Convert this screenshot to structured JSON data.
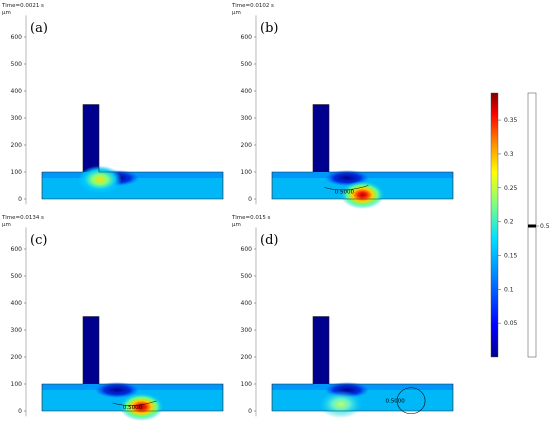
{
  "chart_data": {
    "type": "heatmap",
    "y_axis_unit": "µm",
    "panels": [
      {
        "label": "(a)",
        "time_text": "Time=0.0021 s",
        "y_ticks": [
          0,
          100,
          200,
          300,
          400,
          500,
          600
        ],
        "ylim": [
          -20,
          680
        ],
        "hotspots": [
          {
            "x": 0.32,
            "y": 0.28,
            "value": 0.28
          }
        ],
        "contour_label": "",
        "contour_x": 0.32,
        "contour_y": 0.28
      },
      {
        "label": "(b)",
        "time_text": "Time=0.0102 s",
        "y_ticks": [
          0,
          100,
          200,
          300,
          400,
          500,
          600
        ],
        "ylim": [
          -20,
          680
        ],
        "hotspots": [
          {
            "x": 0.5,
            "y": 0.85,
            "value": 0.38
          }
        ],
        "contour_label": "0.5000",
        "contour_x": 0.4,
        "contour_y": 0.72
      },
      {
        "label": "(c)",
        "time_text": "Time=0.0134 s",
        "y_ticks": [
          0,
          100,
          200,
          300,
          400,
          500,
          600
        ],
        "ylim": [
          -20,
          680
        ],
        "hotspots": [
          {
            "x": 0.55,
            "y": 0.85,
            "value": 0.36
          }
        ],
        "contour_label": "0.5000",
        "contour_x": 0.5,
        "contour_y": 0.85
      },
      {
        "label": "(d)",
        "time_text": "Time=0.015 s",
        "y_ticks": [
          0,
          100,
          200,
          300,
          400,
          500,
          600
        ],
        "ylim": [
          -20,
          680
        ],
        "hotspots": [
          {
            "x": 0.38,
            "y": 0.75,
            "value": 0.18
          }
        ],
        "contour_label": "0.5000",
        "contour_x": 0.68,
        "contour_y": 0.62
      }
    ],
    "colorbar": {
      "range": [
        0,
        0.39
      ],
      "ticks": [
        0.05,
        0.1,
        0.15,
        0.2,
        0.25,
        0.3,
        0.35
      ],
      "tick_labels": [
        "0.05",
        "0.1",
        "0.15",
        "0.2",
        "0.25",
        "0.3",
        "0.35"
      ]
    },
    "contour_bar": {
      "value": 0.5,
      "label": "0.5"
    }
  },
  "colors": {
    "min": "#00008f",
    "mid1": "#0066ff",
    "mid2": "#00d0ff",
    "mid3": "#7fff7f",
    "mid4": "#ffe000",
    "mid5": "#ff3000",
    "max": "#8b0000"
  }
}
